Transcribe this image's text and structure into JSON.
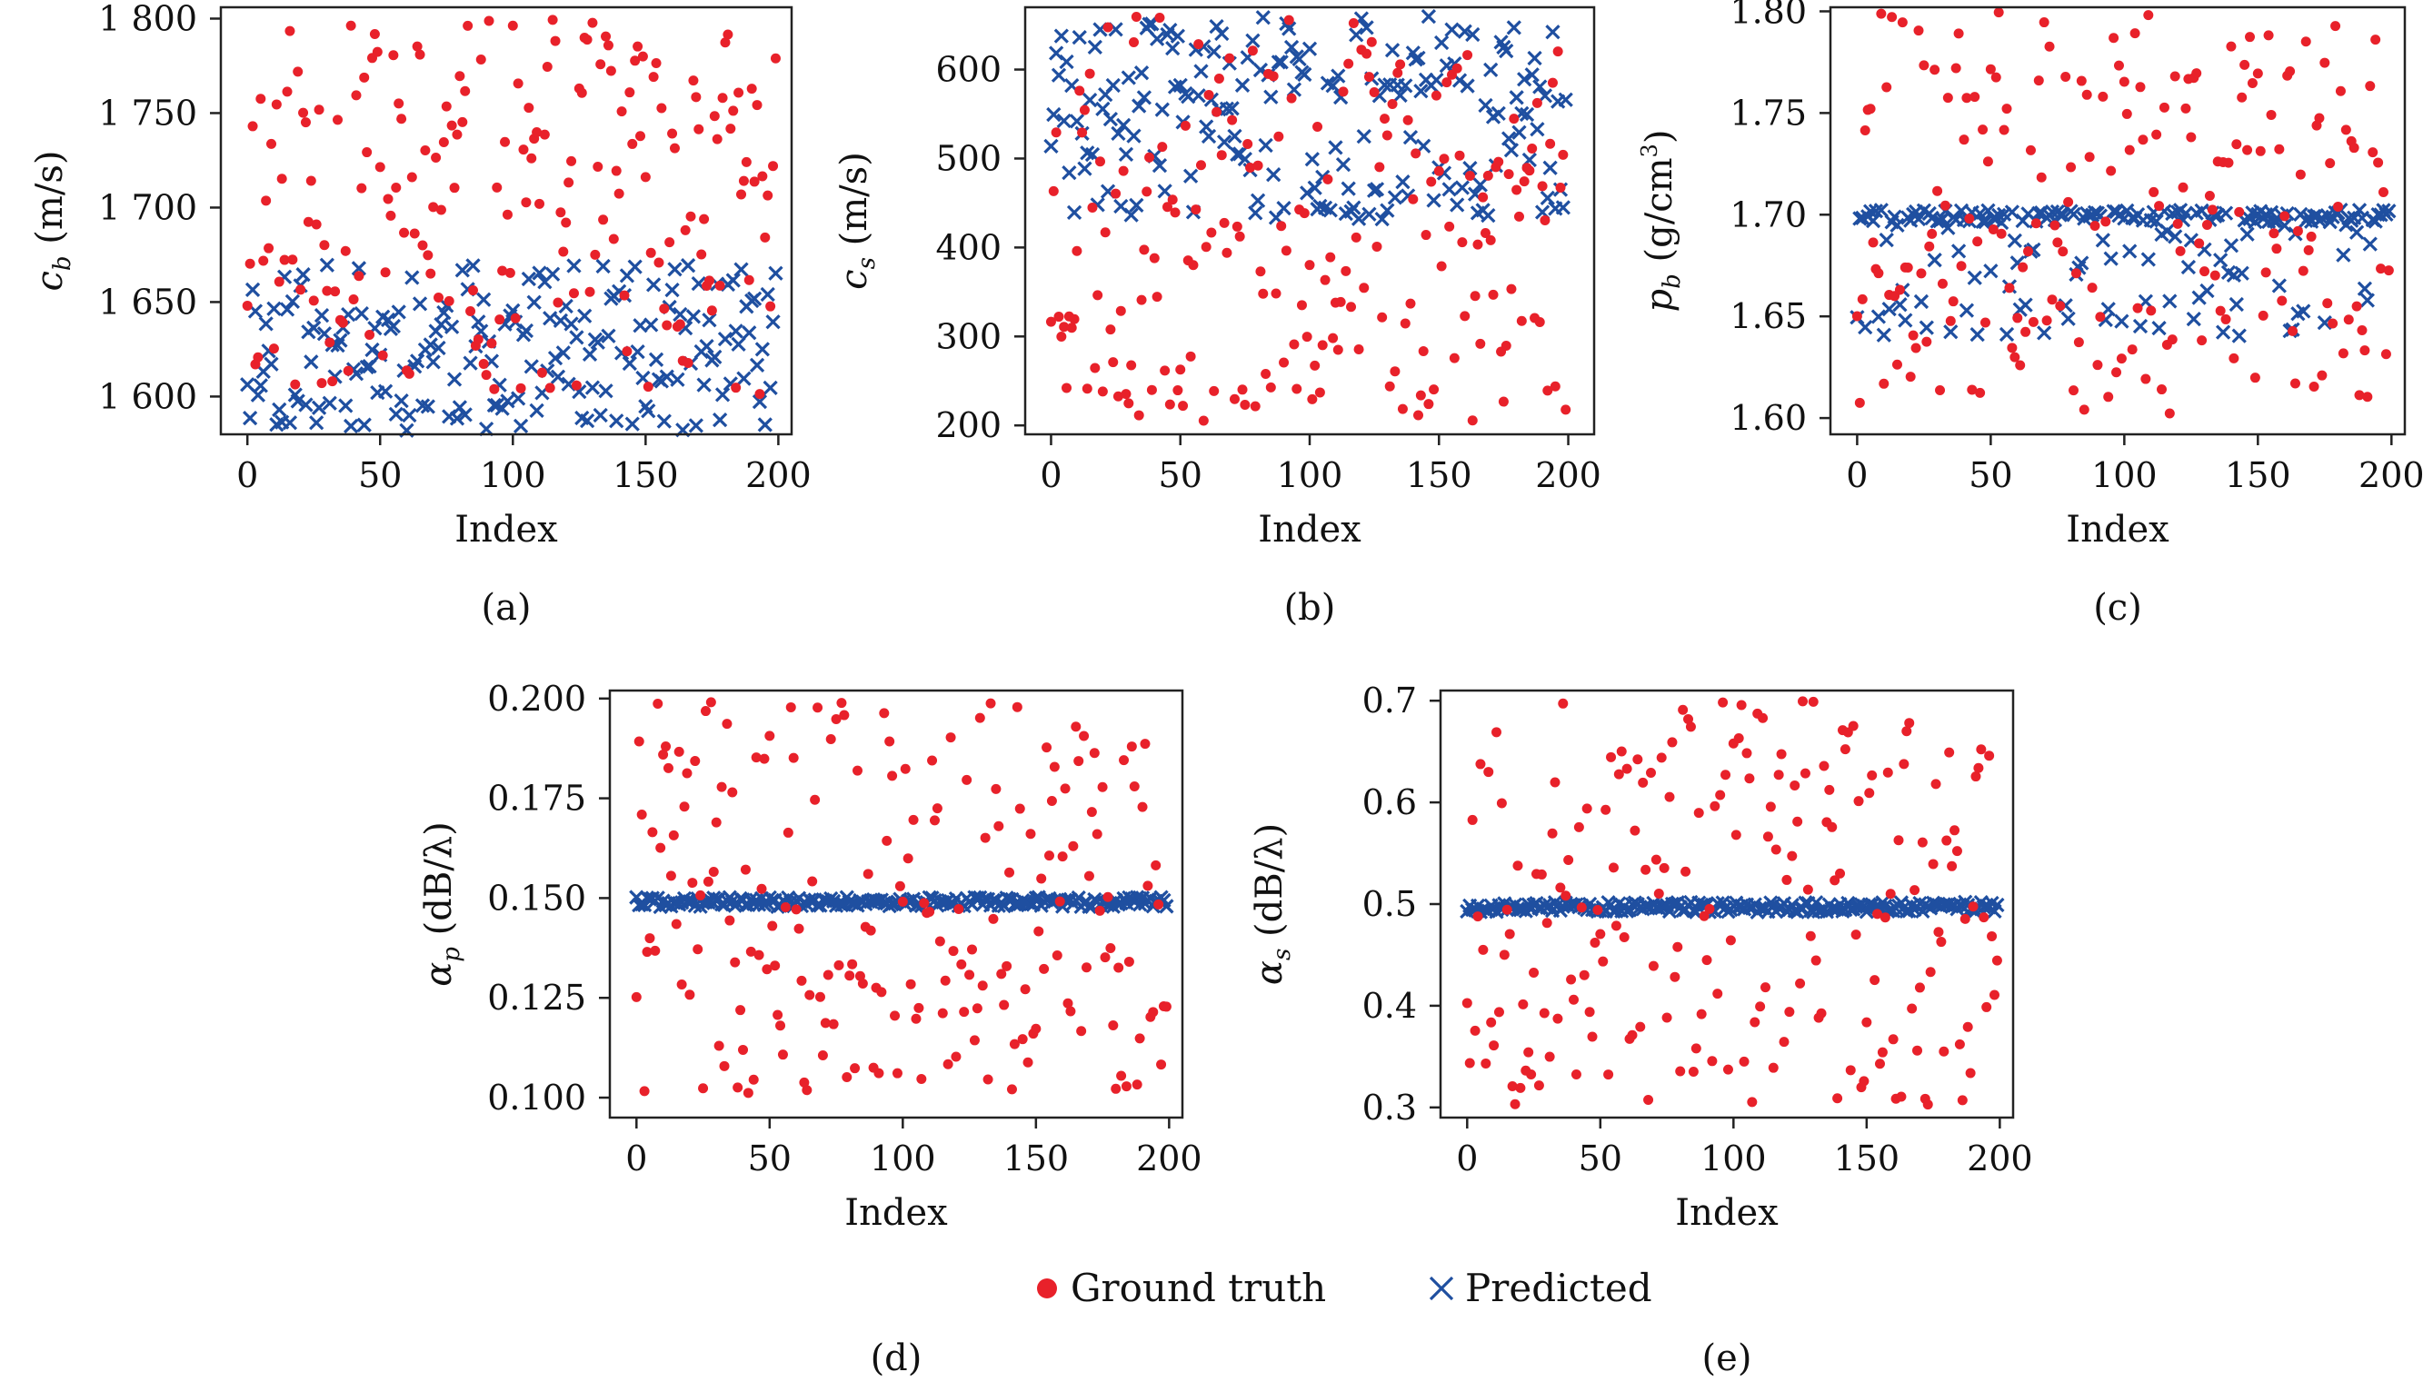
{
  "chart_data": [
    {
      "id": "a",
      "panel_label": "(a)",
      "type": "scatter",
      "xlabel": "Index",
      "ylabel": {
        "sym": "c",
        "sub": "b",
        "unit": " (m/s)"
      },
      "xlim": [
        -10,
        205
      ],
      "ylim": [
        1580,
        1806
      ],
      "xticks": [
        0,
        50,
        100,
        150,
        200
      ],
      "xtick_labels": [
        "0",
        "50",
        "100",
        "150",
        "200"
      ],
      "yticks": [
        1600,
        1650,
        1700,
        1750,
        1800
      ],
      "ytick_labels": [
        "1 600",
        "1 650",
        "1 700",
        "1 750",
        "1 800"
      ],
      "truth_range": [
        1600,
        1800
      ],
      "pred_mode": "uniform",
      "pred_range": [
        1582,
        1670
      ],
      "seed": 11
    },
    {
      "id": "b",
      "panel_label": "(b)",
      "type": "scatter",
      "xlabel": "Index",
      "ylabel": {
        "sym": "c",
        "sub": "s",
        "unit": " (m/s)"
      },
      "xlim": [
        -10,
        210
      ],
      "ylim": [
        190,
        670
      ],
      "xticks": [
        0,
        50,
        100,
        150,
        200
      ],
      "xtick_labels": [
        "0",
        "50",
        "100",
        "150",
        "200"
      ],
      "yticks": [
        200,
        300,
        400,
        500,
        600
      ],
      "ytick_labels": [
        "200",
        "300",
        "400",
        "500",
        "600"
      ],
      "truth_range": [
        205,
        660
      ],
      "pred_mode": "uniform",
      "pred_range": [
        430,
        660
      ],
      "seed": 23
    },
    {
      "id": "c",
      "panel_label": "(c)",
      "type": "scatter",
      "xlabel": "Index",
      "ylabel": {
        "sym": "p",
        "sub": "b",
        "unit": " (g/cm",
        "sup": "3",
        "tail": ")"
      },
      "xlim": [
        -10,
        205
      ],
      "ylim": [
        1.592,
        1.802
      ],
      "xticks": [
        0,
        50,
        100,
        150,
        200
      ],
      "xtick_labels": [
        "0",
        "50",
        "100",
        "150",
        "200"
      ],
      "yticks": [
        1.6,
        1.65,
        1.7,
        1.75,
        1.8
      ],
      "ytick_labels": [
        "1.60",
        "1.65",
        "1.70",
        "1.75",
        "1.80"
      ],
      "truth_range": [
        1.6,
        1.8
      ],
      "pred_mode": "banded",
      "pred_center": 1.7,
      "pred_range": [
        1.64,
        1.702
      ],
      "seed": 37
    },
    {
      "id": "d",
      "panel_label": "(d)",
      "type": "scatter",
      "xlabel": "Index",
      "ylabel": {
        "sym": "α",
        "sub": "p",
        "unit": " (dB/λ)"
      },
      "xlim": [
        -10,
        205
      ],
      "ylim": [
        0.095,
        0.202
      ],
      "xticks": [
        0,
        50,
        100,
        150,
        200
      ],
      "xtick_labels": [
        "0",
        "50",
        "100",
        "150",
        "200"
      ],
      "yticks": [
        0.1,
        0.125,
        0.15,
        0.175,
        0.2
      ],
      "ytick_labels": [
        "0.100",
        "0.125",
        "0.150",
        "0.175",
        "0.200"
      ],
      "truth_range": [
        0.1,
        0.2
      ],
      "pred_mode": "constant",
      "pred_center": 0.149,
      "pred_jitter": 0.0012,
      "seed": 41
    },
    {
      "id": "e",
      "panel_label": "(e)",
      "type": "scatter",
      "xlabel": "Index",
      "ylabel": {
        "sym": "α",
        "sub": "s",
        "unit": " (dB/λ)"
      },
      "xlim": [
        -10,
        205
      ],
      "ylim": [
        0.29,
        0.71
      ],
      "xticks": [
        0,
        50,
        100,
        150,
        200
      ],
      "xtick_labels": [
        "0",
        "50",
        "100",
        "150",
        "200"
      ],
      "yticks": [
        0.3,
        0.4,
        0.5,
        0.6,
        0.7
      ],
      "ytick_labels": [
        "0.3",
        "0.4",
        "0.5",
        "0.6",
        "0.7"
      ],
      "truth_range": [
        0.3,
        0.7
      ],
      "pred_mode": "constant",
      "pred_center": 0.497,
      "pred_jitter": 0.005,
      "seed": 53
    }
  ],
  "points_per_series": 200,
  "legend": {
    "truth_label": "Ground truth",
    "pred_label": "Predicted"
  },
  "colors": {
    "truth": "#e8212a",
    "pred": "#1f4fa0",
    "frame": "#222222"
  }
}
